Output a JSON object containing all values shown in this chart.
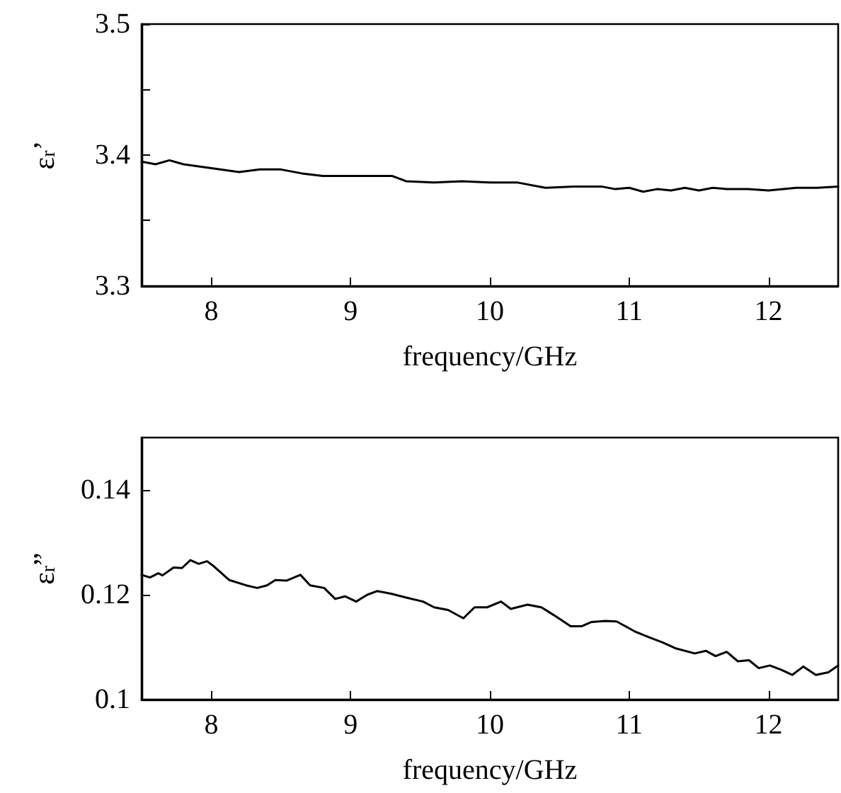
{
  "chart_data": [
    {
      "type": "line",
      "xlabel": "frequency/GHz",
      "ylabel": "ε$_{r}$’",
      "xlim": [
        7.5,
        12.5
      ],
      "xticks": [
        8,
        9,
        10,
        11,
        12
      ],
      "ylim": [
        3.3,
        3.5
      ],
      "yticks": [
        3.3,
        {
          "value": 3.35,
          "label": null
        },
        3.4,
        {
          "value": 3.45,
          "label": null
        },
        3.5
      ],
      "grid": false,
      "marker": "none",
      "line_style": "solid",
      "series": [
        {
          "color": "#000000",
          "x": [
            7.5,
            7.6,
            7.7,
            7.8,
            8.0,
            8.2,
            8.35,
            8.5,
            8.65,
            8.8,
            9.0,
            9.15,
            9.3,
            9.4,
            9.6,
            9.8,
            10.0,
            10.2,
            10.4,
            10.6,
            10.8,
            10.9,
            11.0,
            11.1,
            11.2,
            11.3,
            11.4,
            11.5,
            11.6,
            11.7,
            11.85,
            12.0,
            12.2,
            12.35,
            12.5
          ],
          "values": [
            3.395,
            3.393,
            3.396,
            3.393,
            3.39,
            3.387,
            3.389,
            3.389,
            3.386,
            3.384,
            3.384,
            3.384,
            3.384,
            3.38,
            3.379,
            3.38,
            3.379,
            3.379,
            3.375,
            3.376,
            3.376,
            3.374,
            3.375,
            3.372,
            3.374,
            3.373,
            3.375,
            3.373,
            3.375,
            3.374,
            3.374,
            3.373,
            3.375,
            3.375,
            3.376
          ]
        }
      ]
    },
    {
      "type": "line",
      "xlabel": "frequency/GHz",
      "ylabel": "ε$_{r}$”",
      "xlim": [
        7.5,
        12.5
      ],
      "xticks": [
        8,
        9,
        10,
        11,
        12
      ],
      "ylim": [
        0.1,
        0.15
      ],
      "yticks": [
        0.1,
        0.12,
        0.14
      ],
      "grid": false,
      "marker": "none",
      "line_style": "solid",
      "series": [
        {
          "color": "#000000",
          "x": [
            7.5,
            7.56,
            7.62,
            7.65,
            7.73,
            7.79,
            7.85,
            7.91,
            7.97,
            8.02,
            8.13,
            8.25,
            8.33,
            8.4,
            8.46,
            8.54,
            8.64,
            8.71,
            8.81,
            8.89,
            8.96,
            9.04,
            9.12,
            9.19,
            9.29,
            9.41,
            9.52,
            9.6,
            9.7,
            9.81,
            9.89,
            9.98,
            10.08,
            10.15,
            10.27,
            10.37,
            10.46,
            10.58,
            10.66,
            10.73,
            10.83,
            10.91,
            11.04,
            11.14,
            11.24,
            11.33,
            11.47,
            11.55,
            11.62,
            11.7,
            11.78,
            11.86,
            11.93,
            12.01,
            12.09,
            12.17,
            12.25,
            12.34,
            12.43,
            12.5
          ],
          "values": [
            0.1238,
            0.1233,
            0.1241,
            0.1237,
            0.1252,
            0.1251,
            0.1266,
            0.1259,
            0.1264,
            0.1254,
            0.1228,
            0.1218,
            0.1213,
            0.1218,
            0.1228,
            0.1227,
            0.1238,
            0.1218,
            0.1213,
            0.1192,
            0.1197,
            0.1187,
            0.12,
            0.1207,
            0.1202,
            0.1194,
            0.1187,
            0.1176,
            0.1171,
            0.1155,
            0.1176,
            0.1176,
            0.1187,
            0.1173,
            0.1181,
            0.1176,
            0.1161,
            0.114,
            0.114,
            0.1148,
            0.115,
            0.1149,
            0.113,
            0.1119,
            0.1109,
            0.1098,
            0.1088,
            0.1093,
            0.1083,
            0.1091,
            0.1073,
            0.1075,
            0.106,
            0.1065,
            0.1057,
            0.1047,
            0.1063,
            0.1047,
            0.1052,
            0.1065
          ]
        }
      ]
    }
  ]
}
